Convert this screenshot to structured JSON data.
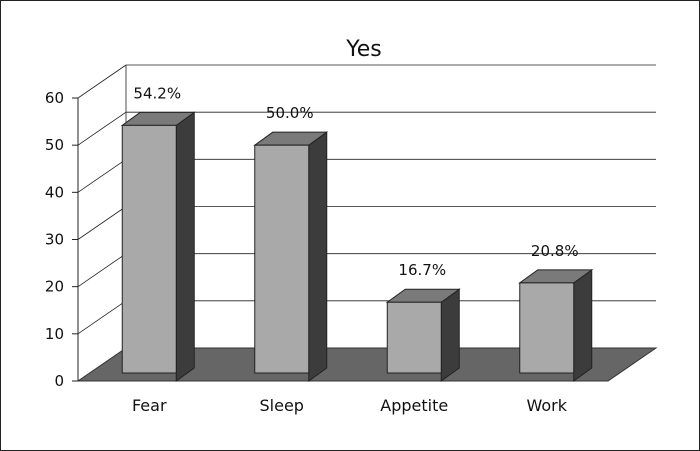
{
  "chart_data": {
    "type": "bar",
    "title": "Yes",
    "categories": [
      "Fear",
      "Sleep",
      "Appetite",
      "Work"
    ],
    "values": [
      54.2,
      50.0,
      16.7,
      20.8
    ],
    "data_labels": [
      "54.2%",
      "50.0%",
      "16.7%",
      "20.8%"
    ],
    "y_ticks": [
      "0",
      "10",
      "20",
      "30",
      "40",
      "50",
      "60"
    ],
    "ylim": [
      0,
      60
    ],
    "xlabel": "",
    "ylabel": "",
    "grid": true,
    "legend": "none",
    "style": "3d",
    "colors": {
      "bar_front": "#a9a9a9",
      "bar_top": "#7a7a7a",
      "bar_side": "#3c3c3c",
      "floor": "#666666",
      "grid": "#222222"
    }
  }
}
